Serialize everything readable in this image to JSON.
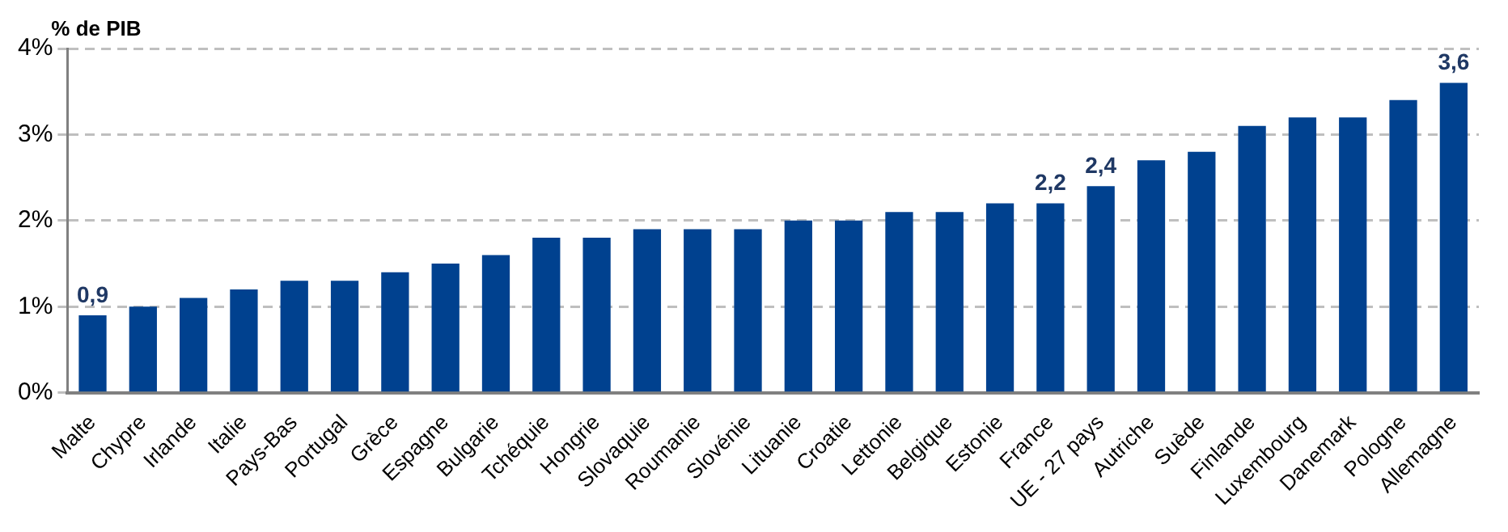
{
  "chart_data": {
    "type": "bar",
    "ylabel": "% de PIB",
    "color": "#00418f",
    "categories": [
      "Malte",
      "Chypre",
      "Irlande",
      "Italie",
      "Pays-Bas",
      "Portugal",
      "Grèce",
      "Espagne",
      "Bulgarie",
      "Tchéquie",
      "Hongrie",
      "Slovaquie",
      "Roumanie",
      "Slovénie",
      "Lituanie",
      "Croatie",
      "Lettonie",
      "Belgique",
      "Estonie",
      "France",
      "UE - 27 pays",
      "Autriche",
      "Suède",
      "Finlande",
      "Luxembourg",
      "Danemark",
      "Pologne",
      "Allemagne"
    ],
    "values": [
      0.9,
      1.0,
      1.1,
      1.2,
      1.3,
      1.3,
      1.4,
      1.5,
      1.6,
      1.8,
      1.8,
      1.9,
      1.9,
      1.9,
      2.0,
      2.0,
      2.1,
      2.1,
      2.2,
      2.2,
      2.4,
      2.7,
      2.8,
      3.1,
      3.2,
      3.2,
      3.4,
      3.6
    ],
    "value_labels": [
      "0,9",
      null,
      null,
      null,
      null,
      null,
      null,
      null,
      null,
      null,
      null,
      null,
      null,
      null,
      null,
      null,
      null,
      null,
      null,
      "2,2",
      "2,4",
      null,
      null,
      null,
      null,
      null,
      null,
      "3,6"
    ],
    "ylim": [
      0,
      4
    ],
    "yticks": [
      {
        "value": 0,
        "label": "0%"
      },
      {
        "value": 1,
        "label": "1%"
      },
      {
        "value": 2,
        "label": "2%"
      },
      {
        "value": 3,
        "label": "3%"
      },
      {
        "value": 4,
        "label": "4%"
      }
    ],
    "grid": "y"
  }
}
